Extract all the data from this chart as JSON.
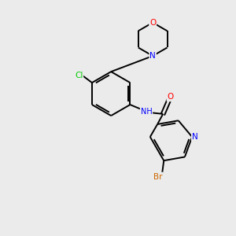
{
  "background_color": "#ebebeb",
  "bond_color": "#000000",
  "atom_colors": {
    "N": "#0000ff",
    "O": "#ff0000",
    "Cl": "#00cc00",
    "Br": "#cc6600",
    "C": "#000000",
    "H": "#000000"
  },
  "figsize": [
    3.0,
    3.0
  ],
  "dpi": 100,
  "lw": 1.4,
  "fontsize": 7.5
}
